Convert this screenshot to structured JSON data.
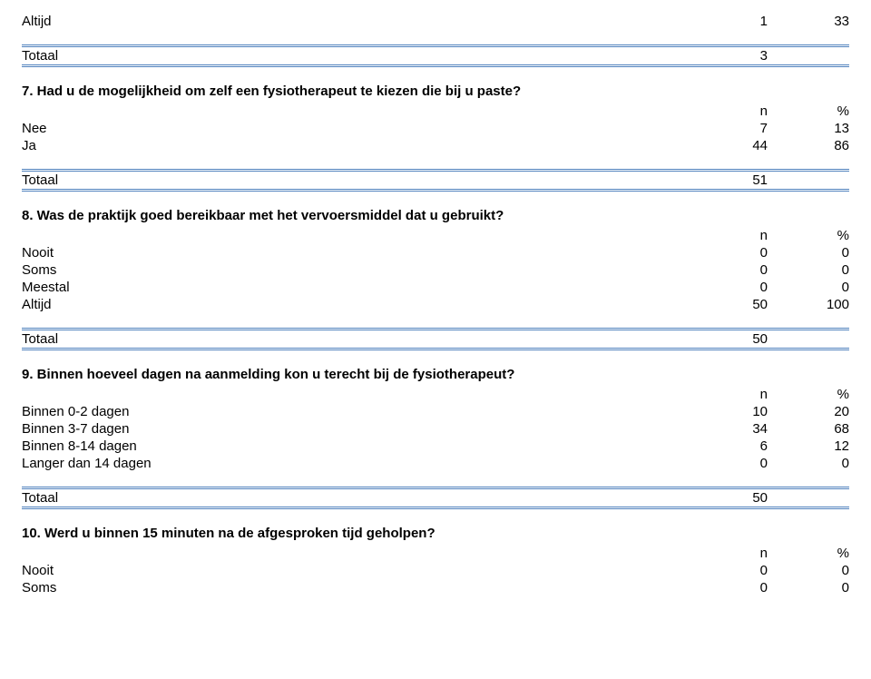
{
  "colors": {
    "rule": "#4f81bd",
    "text": "#000000",
    "background": "#ffffff"
  },
  "typography": {
    "font_family": "Arial",
    "body_fontsize_pt": 11,
    "title_fontsize_pt": 11,
    "title_weight": "bold"
  },
  "headers": {
    "n": "n",
    "pct": "%"
  },
  "labels": {
    "totaal": "Totaal"
  },
  "top": {
    "option_label": "Altijd",
    "option_n": "1",
    "option_pct": "33",
    "totaal_value": "3",
    "totaal_pct": ""
  },
  "q7": {
    "title": "7. Had u de mogelijkheid om zelf een fysiotherapeut te kiezen die bij u paste?",
    "options": [
      {
        "label": "Nee",
        "n": "7",
        "pct": "13"
      },
      {
        "label": "Ja",
        "n": "44",
        "pct": "86"
      }
    ],
    "totaal": {
      "n": "51",
      "pct": ""
    }
  },
  "q8": {
    "title": "8. Was de praktijk goed bereikbaar met het vervoersmiddel dat u gebruikt?",
    "options": [
      {
        "label": "Nooit",
        "n": "0",
        "pct": "0"
      },
      {
        "label": "Soms",
        "n": "0",
        "pct": "0"
      },
      {
        "label": "Meestal",
        "n": "0",
        "pct": "0"
      },
      {
        "label": "Altijd",
        "n": "50",
        "pct": "100"
      }
    ],
    "totaal": {
      "n": "50",
      "pct": ""
    }
  },
  "q9": {
    "title": "9. Binnen hoeveel dagen na aanmelding kon u terecht bij de fysiotherapeut?",
    "options": [
      {
        "label": "Binnen 0-2 dagen",
        "n": "10",
        "pct": "20"
      },
      {
        "label": "Binnen 3-7 dagen",
        "n": "34",
        "pct": "68"
      },
      {
        "label": "Binnen 8-14 dagen",
        "n": "6",
        "pct": "12"
      },
      {
        "label": "Langer dan 14 dagen",
        "n": "0",
        "pct": "0"
      }
    ],
    "totaal": {
      "n": "50",
      "pct": ""
    }
  },
  "q10": {
    "title": "10. Werd u binnen 15 minuten na de afgesproken tijd geholpen?",
    "options": [
      {
        "label": "Nooit",
        "n": "0",
        "pct": "0"
      },
      {
        "label": "Soms",
        "n": "0",
        "pct": "0"
      }
    ]
  }
}
